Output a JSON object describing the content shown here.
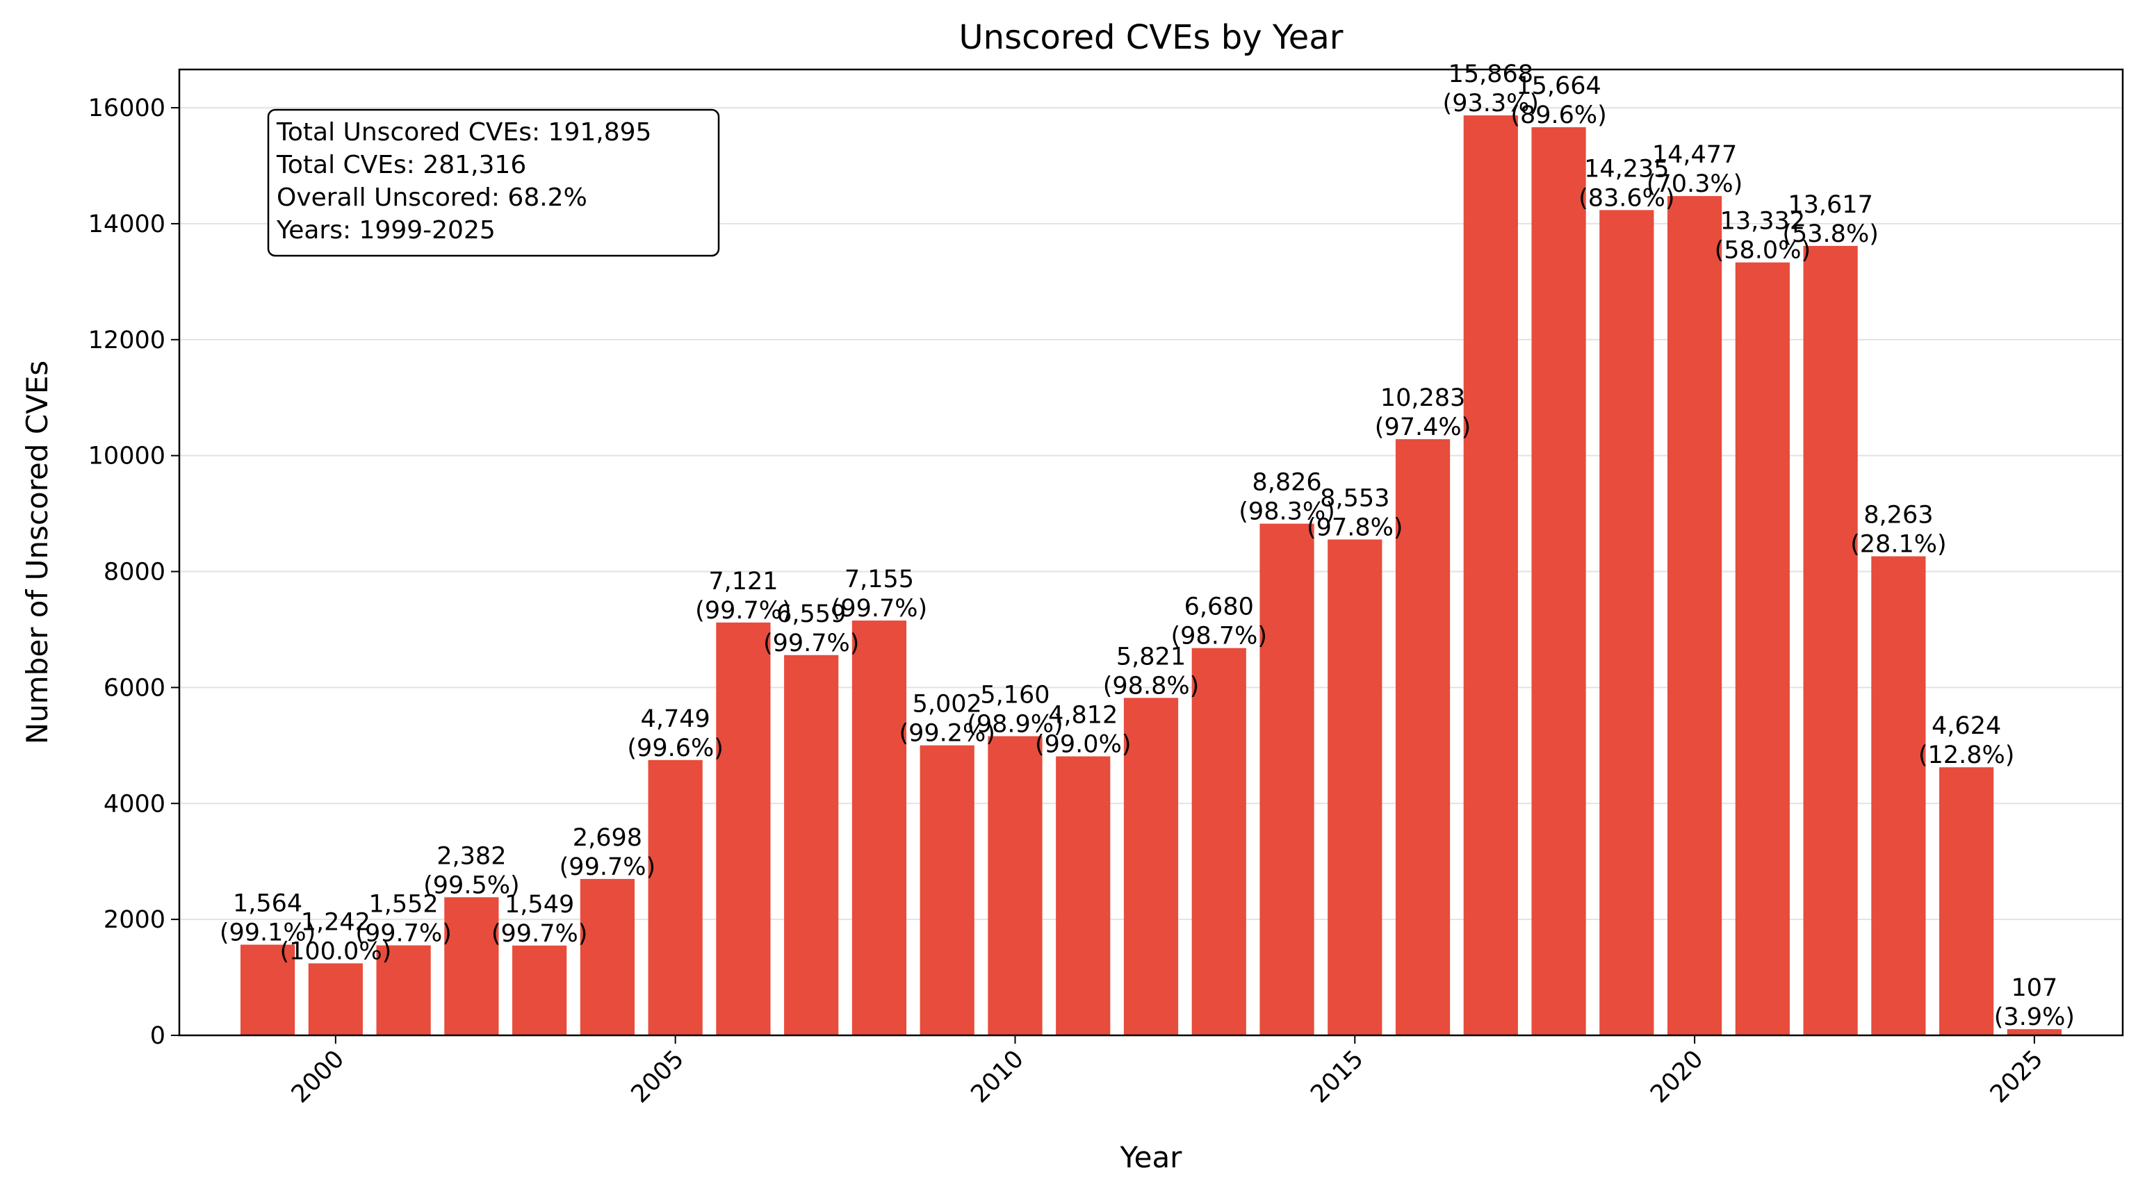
{
  "chart_data": {
    "type": "bar",
    "title": "Unscored CVEs by Year",
    "xlabel": "Year",
    "ylabel": "Number of Unscored CVEs",
    "ylim": [
      0,
      16660
    ],
    "xlim": [
      1997.7,
      2026.3
    ],
    "yticks": [
      0,
      2000,
      4000,
      6000,
      8000,
      10000,
      12000,
      14000,
      16000
    ],
    "xticks": [
      2000,
      2005,
      2010,
      2015,
      2020,
      2025
    ],
    "grid": "horizontal",
    "bar_color": "#e74c3c",
    "years": [
      1999,
      2000,
      2001,
      2002,
      2003,
      2004,
      2005,
      2006,
      2007,
      2008,
      2009,
      2010,
      2011,
      2012,
      2013,
      2014,
      2015,
      2016,
      2017,
      2018,
      2019,
      2020,
      2021,
      2022,
      2023,
      2024,
      2025
    ],
    "values": [
      1564,
      1242,
      1552,
      2382,
      1549,
      2698,
      4749,
      7121,
      6559,
      7155,
      5002,
      5160,
      4812,
      5821,
      6680,
      8826,
      8553,
      10283,
      15868,
      15664,
      14235,
      14477,
      13332,
      13617,
      8263,
      4624,
      107
    ],
    "value_labels": [
      "1,564",
      "1,242",
      "1,552",
      "2,382",
      "1,549",
      "2,698",
      "4,749",
      "7,121",
      "6,559",
      "7,155",
      "5,002",
      "5,160",
      "4,812",
      "5,821",
      "6,680",
      "8,826",
      "8,553",
      "10,283",
      "15,868",
      "15,664",
      "14,235",
      "14,477",
      "13,332",
      "13,617",
      "8,263",
      "4,624",
      "107"
    ],
    "percent_labels": [
      "(99.1%)",
      "(100.0%)",
      "(99.7%)",
      "(99.5%)",
      "(99.7%)",
      "(99.7%)",
      "(99.6%)",
      "(99.7%)",
      "(99.7%)",
      "(99.7%)",
      "(99.2%)",
      "(98.9%)",
      "(99.0%)",
      "(98.8%)",
      "(98.7%)",
      "(98.3%)",
      "(97.8%)",
      "(97.4%)",
      "(93.3%)",
      "(89.6%)",
      "(83.6%)",
      "(70.3%)",
      "(58.0%)",
      "(53.8%)",
      "(28.1%)",
      "(12.8%)",
      "(3.9%)"
    ],
    "annotations": [
      "Total Unscored CVEs: 191,895",
      "Total CVEs: 281,316",
      "Overall Unscored: 68.2%",
      "Years: 1999-2025"
    ]
  }
}
